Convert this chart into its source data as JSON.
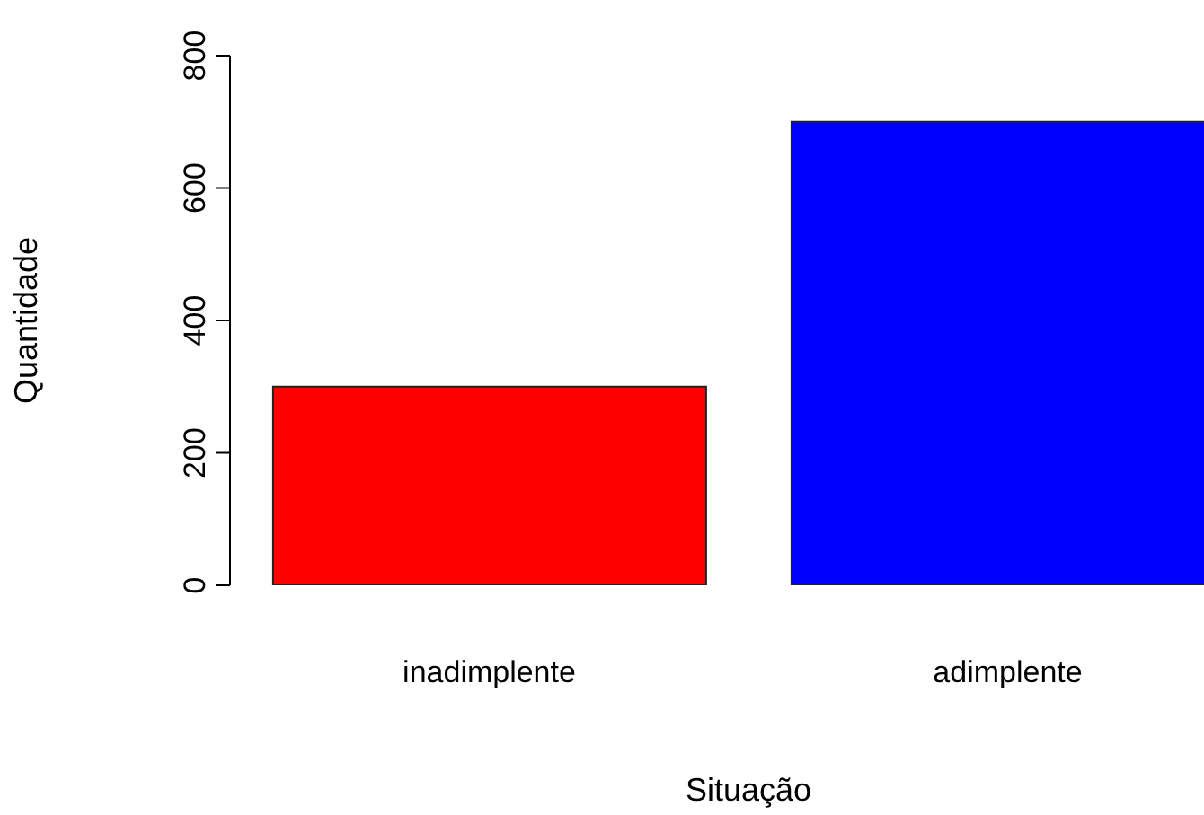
{
  "chart_data": {
    "type": "bar",
    "xlabel": "Situação",
    "ylabel": "Quantidade",
    "categories": [
      "inadimplente",
      "adimplente"
    ],
    "values": [
      300,
      700
    ],
    "colors": [
      "#ff0000",
      "#0000ff"
    ],
    "ylim": [
      0,
      800
    ],
    "yticks": [
      0,
      200,
      400,
      600,
      800
    ],
    "grid": false,
    "legend": false
  }
}
